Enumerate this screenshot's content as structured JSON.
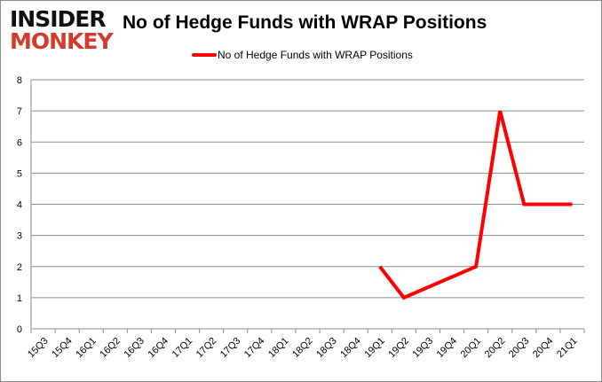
{
  "logo": {
    "line1": "INSIDER",
    "line2": "MONKEY"
  },
  "chart_data": {
    "type": "line",
    "title": "No of Hedge Funds with WRAP Positions",
    "xlabel": "",
    "ylabel": "",
    "ylim": [
      0,
      8
    ],
    "yticks": [
      0,
      1,
      2,
      3,
      4,
      5,
      6,
      7,
      8
    ],
    "grid": true,
    "legend_position": "top",
    "categories": [
      "15Q3",
      "15Q4",
      "16Q1",
      "16Q2",
      "16Q3",
      "16Q4",
      "17Q1",
      "17Q2",
      "17Q3",
      "17Q4",
      "18Q1",
      "18Q2",
      "18Q3",
      "18Q4",
      "19Q1",
      "19Q2",
      "19Q3",
      "19Q4",
      "20Q1",
      "20Q2",
      "20Q3",
      "20Q4",
      "21Q1"
    ],
    "series": [
      {
        "name": "No of Hedge Funds with WRAP Positions",
        "color": "#ff0000",
        "values": [
          null,
          null,
          null,
          null,
          null,
          null,
          null,
          null,
          null,
          null,
          null,
          null,
          null,
          null,
          2,
          1,
          null,
          null,
          2,
          7,
          4,
          4,
          4
        ]
      }
    ]
  }
}
